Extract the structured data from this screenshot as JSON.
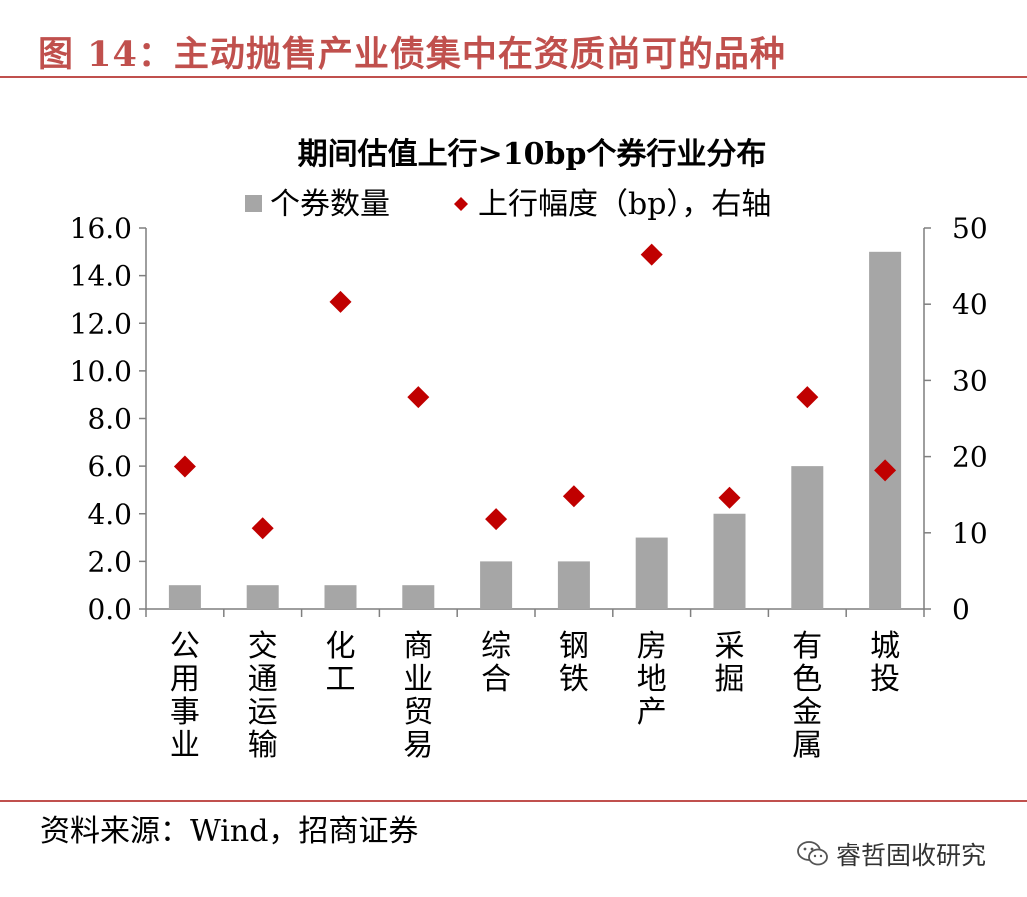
{
  "figure": {
    "title": "图 14：主动抛售产业债集中在资质尚可的品种",
    "source": "资料来源：Wind，招商证券",
    "watermark": "睿哲固收研究",
    "accent_color": "#c0504d",
    "watermark_icon": "wechat-icon"
  },
  "chart_data": {
    "type": "bar",
    "title": "期间估值上行>10bp个券行业分布",
    "categories": [
      "公用事业",
      "交通运输",
      "化工",
      "商业贸易",
      "综合",
      "钢铁",
      "房地产",
      "采掘",
      "有色金属",
      "城投"
    ],
    "series": [
      {
        "name": "个券数量",
        "type": "bar",
        "axis": "left",
        "color": "#a6a6a6",
        "values": [
          1,
          1,
          1,
          1,
          2,
          2,
          3,
          4,
          6,
          15
        ]
      },
      {
        "name": "上行幅度（bp），右轴",
        "type": "scatter",
        "marker": "diamond",
        "axis": "right",
        "color": "#c00000",
        "values": [
          18.7,
          10.6,
          40.3,
          27.8,
          11.8,
          14.8,
          46.5,
          14.6,
          27.8,
          18.2
        ]
      }
    ],
    "y_left": {
      "min": 0,
      "max": 16,
      "ticks": [
        "0.0",
        "2.0",
        "4.0",
        "6.0",
        "8.0",
        "10.0",
        "12.0",
        "14.0",
        "16.0"
      ]
    },
    "y_right": {
      "min": 0,
      "max": 50,
      "ticks": [
        "0",
        "10",
        "20",
        "30",
        "40",
        "50"
      ]
    },
    "legend_position": "top",
    "grid": false
  }
}
